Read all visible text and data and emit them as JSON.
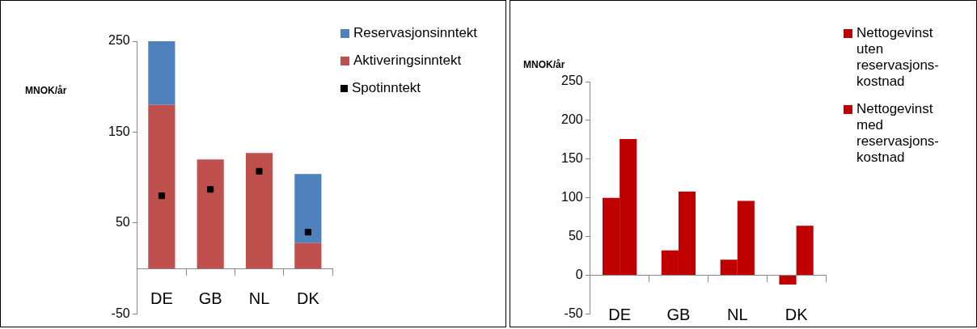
{
  "chart_data": [
    {
      "type": "bar",
      "stacked": true,
      "ylabel": "MNOK/år",
      "categories": [
        "DE",
        "GB",
        "NL",
        "DK"
      ],
      "ylim": [
        -50,
        250
      ],
      "yticks": [
        -50,
        50,
        150,
        250
      ],
      "grid": false,
      "legend": "right",
      "series": [
        {
          "name": "Aktiveringsinntekt",
          "color": "#c0504d",
          "values": [
            180,
            120,
            127,
            28
          ]
        },
        {
          "name": "Reservasjonsinntekt",
          "color": "#4f81bd",
          "values": [
            70,
            0,
            0,
            76
          ]
        },
        {
          "name": "Spotinntekt",
          "type": "scatter",
          "marker": "square",
          "color": "#000000",
          "x": [
            "DE",
            "GB",
            "NL",
            "DK"
          ],
          "values": [
            80,
            87,
            107,
            40
          ]
        }
      ]
    },
    {
      "type": "bar",
      "ylabel": "MNOK/år",
      "categories": [
        "DE",
        "GB",
        "NL",
        "DK"
      ],
      "ylim": [
        -50,
        250
      ],
      "yticks": [
        -50,
        0,
        50,
        100,
        150,
        200,
        250
      ],
      "grid": false,
      "legend": "right",
      "series": [
        {
          "name": "Nettogevinst uten reservasjons-kostnad",
          "color": "#c00000",
          "values": [
            100,
            32,
            20,
            -12
          ]
        },
        {
          "name": "Nettogevinst med reservasjons-kostnad",
          "color": "#c00000",
          "values": [
            176,
            108,
            96,
            64
          ]
        }
      ]
    }
  ]
}
